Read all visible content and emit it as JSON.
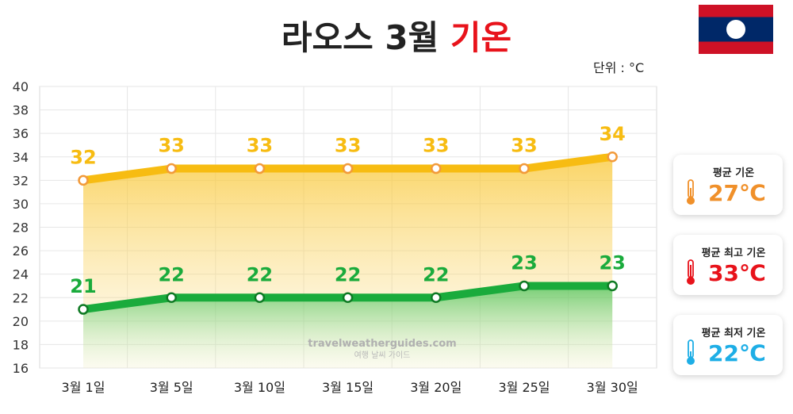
{
  "title": {
    "main": "라오스 3월",
    "accent": "기온"
  },
  "unit_label": "단위 : °C",
  "watermark": {
    "line1": "travelweatherguides.com",
    "line2": "여행 날씨 가이드"
  },
  "colors": {
    "high": "#f7bc12",
    "low": "#1aab3c",
    "avg_card": "#f0902a",
    "high_card": "#e8131b",
    "low_card": "#1eaee6"
  },
  "cards": {
    "avg": {
      "label": "평균 기온",
      "value": "27℃",
      "icon": "thermometer-icon"
    },
    "high": {
      "label": "평균 최고 기온",
      "value": "33℃",
      "icon": "thermometer-icon"
    },
    "low": {
      "label": "평균 최저 기온",
      "value": "22℃",
      "icon": "thermometer-icon"
    }
  },
  "chart_data": {
    "type": "line",
    "categories": [
      "3월 1일",
      "3월 5일",
      "3월 10일",
      "3월 15일",
      "3월 20일",
      "3월 25일",
      "3월 30일"
    ],
    "series": [
      {
        "values": [
          32,
          33,
          33,
          33,
          33,
          33,
          34
        ]
      },
      {
        "values": [
          21,
          22,
          22,
          22,
          22,
          23,
          23
        ]
      }
    ],
    "ylim": [
      16,
      40
    ],
    "yticks": [
      16,
      18,
      20,
      22,
      24,
      26,
      28,
      30,
      32,
      34,
      36,
      38,
      40
    ],
    "grid": true
  }
}
